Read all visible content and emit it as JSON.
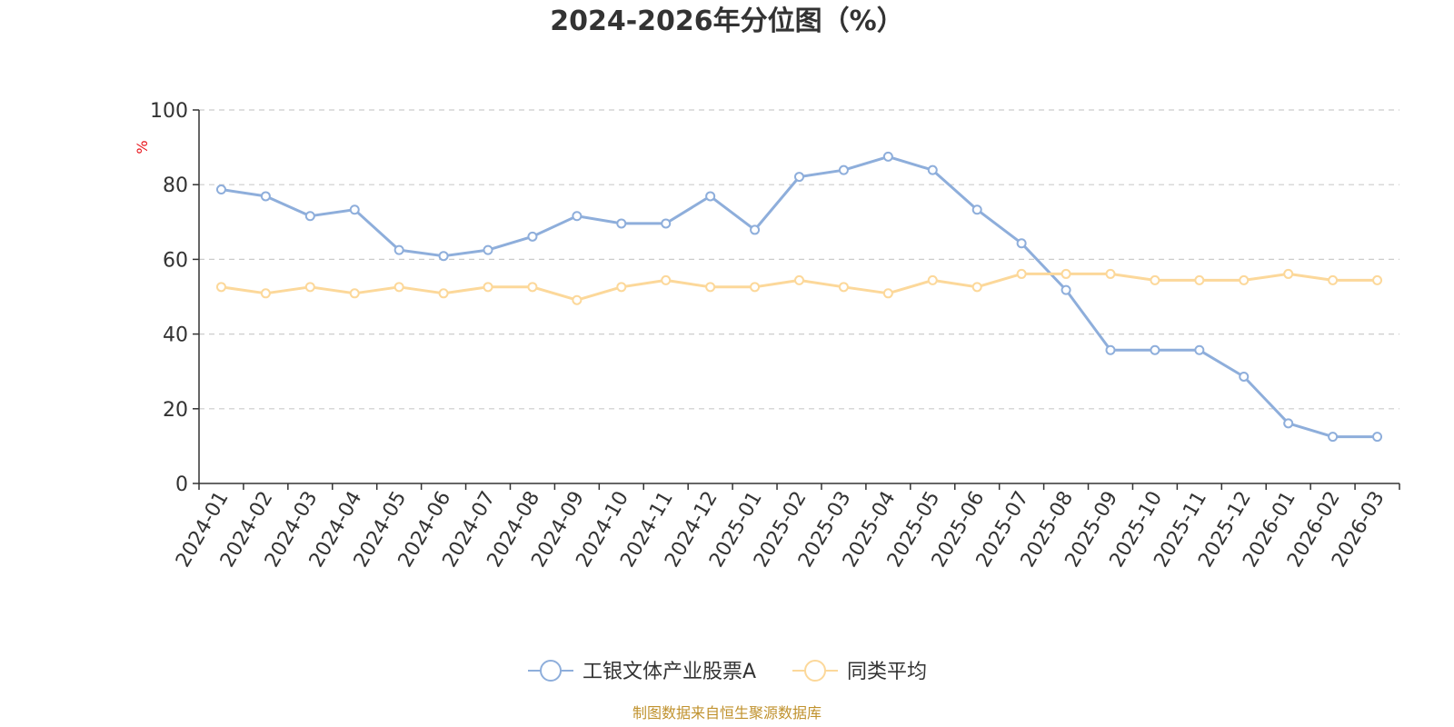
{
  "chart_data": {
    "type": "line",
    "title": "2024-2026年分位图（%）",
    "ylabel": "%",
    "xlabel": "",
    "ylim": [
      0,
      100
    ],
    "yticks": [
      0,
      20,
      40,
      60,
      80,
      100
    ],
    "grid": "horizontal-dashed",
    "legend_position": "bottom",
    "categories": [
      "2024-01",
      "2024-02",
      "2024-03",
      "2024-04",
      "2024-05",
      "2024-06",
      "2024-07",
      "2024-08",
      "2024-09",
      "2024-10",
      "2024-11",
      "2024-12",
      "2025-01",
      "2025-02",
      "2025-03",
      "2025-04",
      "2025-05",
      "2025-06",
      "2025-07",
      "2025-08",
      "2025-09",
      "2025-10",
      "2025-11",
      "2025-12",
      "2026-01",
      "2026-02",
      "2026-03"
    ],
    "series": [
      {
        "name": "工银文体产业股票A",
        "color": "#8eaedb",
        "values": [
          78.7,
          76.9,
          71.6,
          73.3,
          62.5,
          60.9,
          62.5,
          66.1,
          71.6,
          69.6,
          69.6,
          76.9,
          67.9,
          82.1,
          83.9,
          87.5,
          83.9,
          73.3,
          64.3,
          51.8,
          35.7,
          35.7,
          35.7,
          28.6,
          16.1,
          12.5,
          12.5
        ]
      },
      {
        "name": "同类平均",
        "color": "#fcd89a",
        "values": [
          52.6,
          50.9,
          52.6,
          50.9,
          52.6,
          50.9,
          52.6,
          52.6,
          49.1,
          52.6,
          54.4,
          52.6,
          52.6,
          54.4,
          52.6,
          50.9,
          54.4,
          52.6,
          56.1,
          56.1,
          56.1,
          54.4,
          54.4,
          54.4,
          56.1,
          54.4,
          54.4
        ]
      }
    ],
    "source": "制图数据来自恒生聚源数据库"
  }
}
